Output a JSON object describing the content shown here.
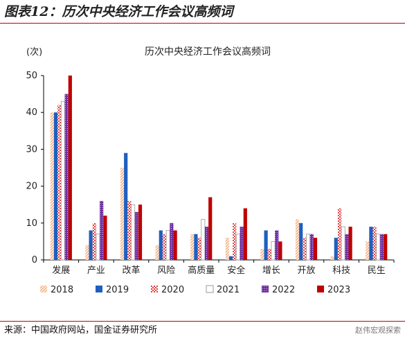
{
  "figure_title": "图表12：历次中央经济工作会议高频词",
  "source_text": "来源：中国政府网站，国金证券研究所",
  "watermark_text": "赵伟宏观探索",
  "colors": {
    "rule": "#c00000",
    "2018": "#f4b183",
    "2019": "#1f5fbf",
    "2020": "#e04040",
    "2021": "#9a9a9a",
    "2022": "#7030a0",
    "2023": "#c00000"
  },
  "chart_data": {
    "type": "bar",
    "title": "历次中央经济工作会议高频词",
    "ylabel": "(次)",
    "xlabel": "",
    "ylim": [
      0,
      50
    ],
    "yticks": [
      0,
      10,
      20,
      30,
      40,
      50
    ],
    "grid": false,
    "legend_position": "bottom",
    "categories": [
      "发展",
      "产业",
      "改革",
      "风险",
      "高质量",
      "安全",
      "增长",
      "开放",
      "科技",
      "民生"
    ],
    "series": [
      {
        "name": "2018",
        "pattern": "diagonal-stripes",
        "values": [
          40,
          4,
          25,
          4,
          7,
          6,
          3,
          11,
          1,
          5
        ]
      },
      {
        "name": "2019",
        "pattern": "solid",
        "values": [
          40,
          8,
          29,
          8,
          7,
          1,
          8,
          10,
          6,
          9
        ]
      },
      {
        "name": "2020",
        "pattern": "checker",
        "values": [
          42,
          10,
          16,
          7,
          6,
          10,
          3,
          6,
          14,
          9
        ]
      },
      {
        "name": "2021",
        "pattern": "hollow",
        "values": [
          43,
          7,
          15,
          8,
          11,
          7,
          5,
          7,
          9,
          7
        ]
      },
      {
        "name": "2022",
        "pattern": "dotted",
        "values": [
          45,
          16,
          13,
          10,
          9,
          9,
          8,
          7,
          7,
          7
        ]
      },
      {
        "name": "2023",
        "pattern": "solid",
        "values": [
          50,
          12,
          15,
          8,
          17,
          14,
          5,
          6,
          9,
          7
        ]
      }
    ]
  }
}
